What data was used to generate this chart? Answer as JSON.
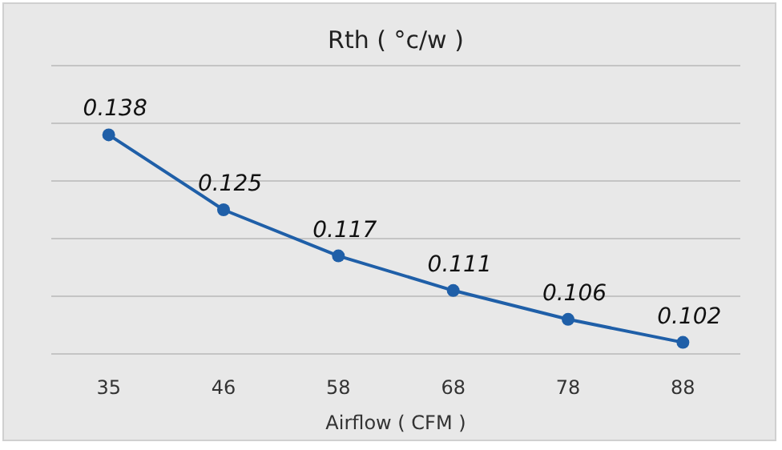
{
  "chart_data": {
    "type": "line",
    "title": "Rth ( °c/w )",
    "xlabel": "Airflow ( CFM )",
    "categories": [
      "35",
      "46",
      "58",
      "68",
      "78",
      "88"
    ],
    "series": [
      {
        "color": "#1f5fa8",
        "values": [
          0.138,
          0.125,
          0.117,
          0.111,
          0.106,
          0.102
        ]
      }
    ],
    "ylim": [
      0.1,
      0.15
    ],
    "yticks": [
      {
        "value": 0.1,
        "label": null
      },
      {
        "value": 0.11,
        "label": null
      },
      {
        "value": 0.12,
        "label": null
      },
      {
        "value": 0.13,
        "label": null
      },
      {
        "value": 0.14,
        "label": null
      },
      {
        "value": 0.15,
        "label": null
      }
    ],
    "grid": "y",
    "tick_labels": "x",
    "data_labels": true,
    "marker": "circle",
    "line_style": "solid"
  }
}
